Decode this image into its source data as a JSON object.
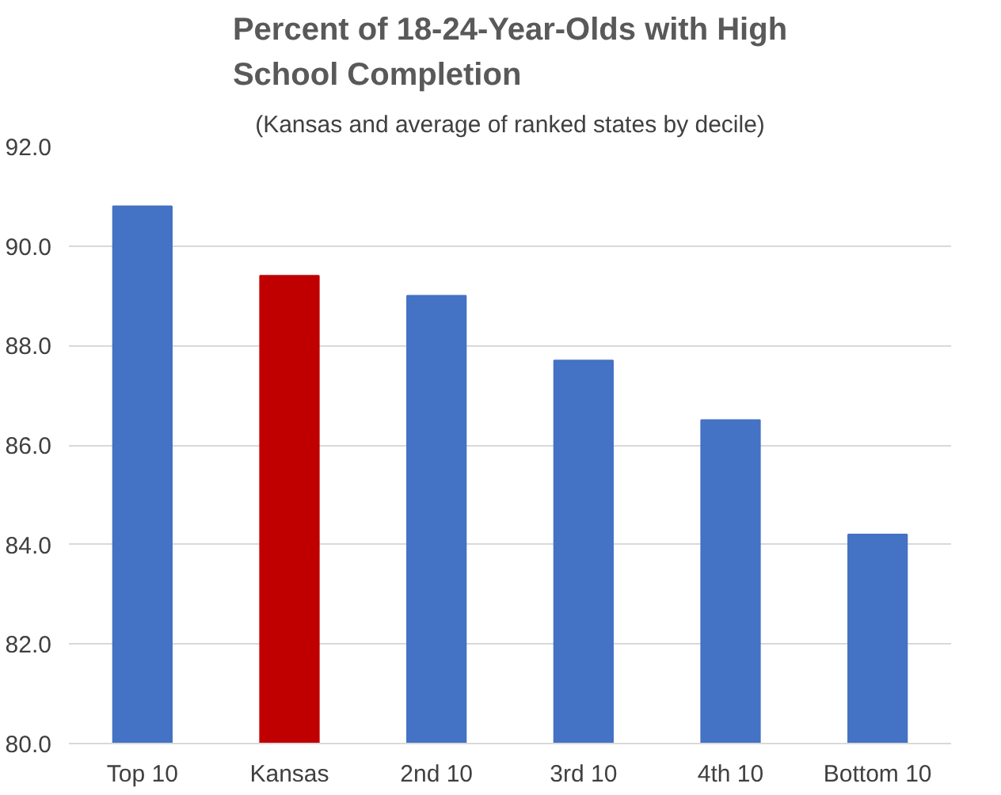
{
  "chart_data": {
    "type": "bar",
    "title": "Percent of 18-24-Year-Olds with High School Completion",
    "subtitle": "(Kansas and average of ranked states by decile)",
    "categories": [
      "Top 10",
      "Kansas",
      "2nd 10",
      "3rd 10",
      "4th 10",
      "Bottom 10"
    ],
    "values": [
      90.8,
      89.4,
      89.0,
      87.7,
      86.5,
      84.2
    ],
    "colors": [
      "#4472c4",
      "#c00000",
      "#4472c4",
      "#4472c4",
      "#4472c4",
      "#4472c4"
    ],
    "ylim": [
      80,
      92
    ],
    "yticks": [
      {
        "value": 80,
        "label": "80.0"
      },
      {
        "value": 82,
        "label": "82.0"
      },
      {
        "value": 84,
        "label": "84.0"
      },
      {
        "value": 86,
        "label": "86.0"
      },
      {
        "value": 88,
        "label": "88.0"
      },
      {
        "value": 90,
        "label": "90.0"
      },
      {
        "value": 92,
        "label": "92.0"
      }
    ],
    "grid": "y"
  }
}
